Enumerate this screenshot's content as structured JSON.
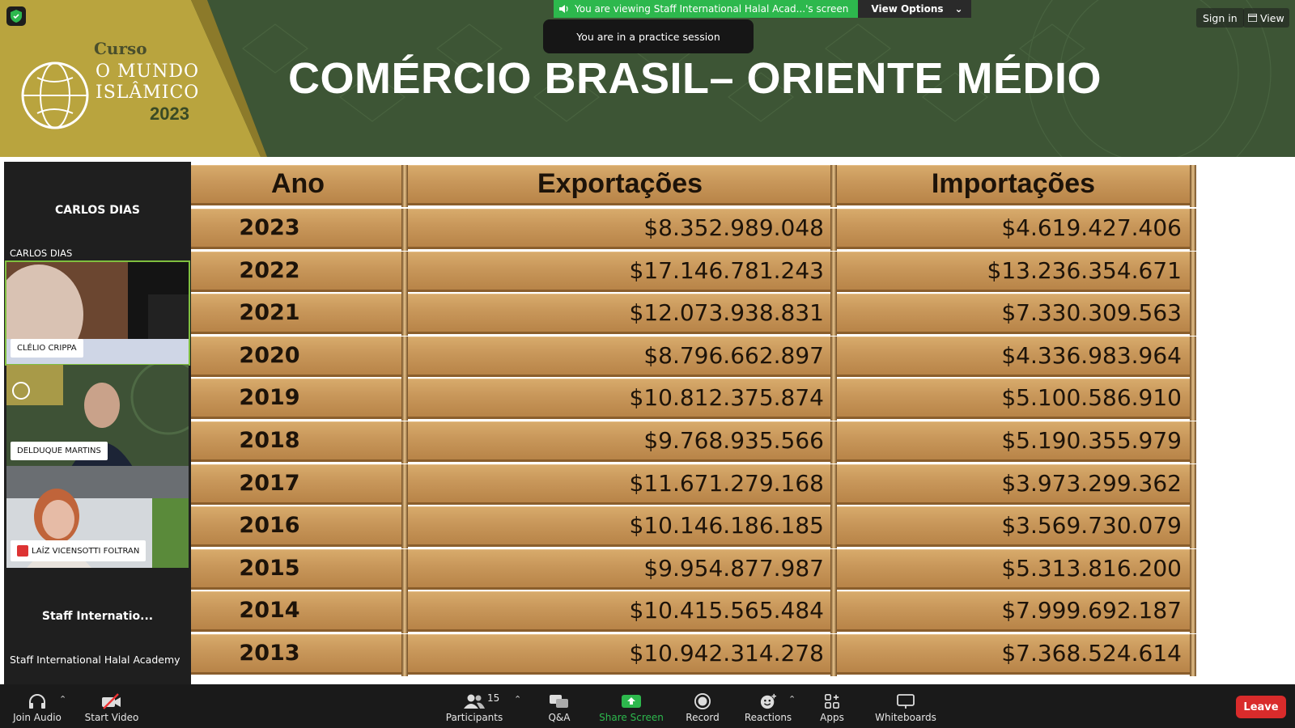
{
  "slide": {
    "logo_curso": "Curso",
    "logo_line1": "O MUNDO",
    "logo_line2": "ISLÂMICO",
    "logo_year": "2023",
    "title": "COMÉRCIO BRASIL– ORIENTE MÉDIO"
  },
  "table": {
    "headers": [
      "Ano",
      "Exportações",
      "Importações"
    ],
    "rows": [
      {
        "year": "2023",
        "exports": "$8.352.989.048",
        "imports": "$4.619.427.406"
      },
      {
        "year": "2022",
        "exports": "$17.146.781.243",
        "imports": "$13.236.354.671"
      },
      {
        "year": "2021",
        "exports": "$12.073.938.831",
        "imports": "$7.330.309.563"
      },
      {
        "year": "2020",
        "exports": "$8.796.662.897",
        "imports": "$4.336.983.964"
      },
      {
        "year": "2019",
        "exports": "$10.812.375.874",
        "imports": "$5.100.586.910"
      },
      {
        "year": "2018",
        "exports": "$9.768.935.566",
        "imports": "$5.190.355.979"
      },
      {
        "year": "2017",
        "exports": "$11.671.279.168",
        "imports": "$3.973.299.362"
      },
      {
        "year": "2016",
        "exports": "$10.146.186.185",
        "imports": "$3.569.730.079"
      },
      {
        "year": "2015",
        "exports": "$9.954.877.987",
        "imports": "$5.313.816.200"
      },
      {
        "year": "2014",
        "exports": "$10.415.565.484",
        "imports": "$7.999.692.187"
      },
      {
        "year": "2013",
        "exports": "$10.942.314.278",
        "imports": "$7.368.524.614"
      }
    ]
  },
  "overlay": {
    "viewing_text": "You are viewing Staff International Halal Acad...'s screen",
    "view_options": "View Options",
    "practice_session": "You are in a practice session",
    "sign_in": "Sign in",
    "view": "View"
  },
  "participants": {
    "top_name": "CARLOS DIAS",
    "top_label": "CARLOS DIAS",
    "tiles": [
      {
        "name": "CLÉLIO CRIPPA",
        "muted": false
      },
      {
        "name": "DELDUQUE MARTINS",
        "muted": false
      },
      {
        "name": "LAÍZ VICENSOTTI FOLTRAN",
        "muted": true
      }
    ],
    "bottom_name": "Staff Internatio...",
    "bottom_label": "Staff International Halal Academy"
  },
  "toolbar": {
    "join_audio": "Join Audio",
    "start_video": "Start Video",
    "participants": "Participants",
    "participant_count": "15",
    "qa": "Q&A",
    "share_screen": "Share Screen",
    "record": "Record",
    "reactions": "Reactions",
    "apps": "Apps",
    "whiteboards": "Whiteboards",
    "leave": "Leave"
  },
  "colors": {
    "banner_green": "#3d5535",
    "banner_gold": "#b9a43e",
    "share_green": "#2db84d",
    "leave_red": "#d92b2b"
  }
}
